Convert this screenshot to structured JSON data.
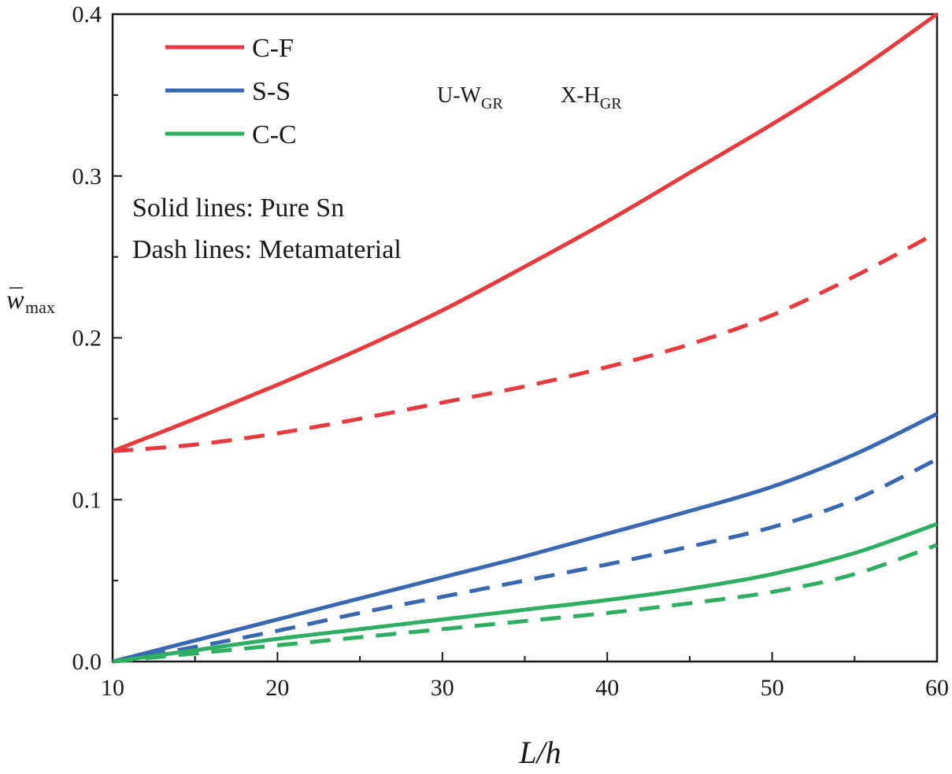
{
  "chart_data": {
    "type": "line",
    "x": [
      10,
      15,
      20,
      25,
      30,
      35,
      40,
      45,
      50,
      55,
      60
    ],
    "xlabel": "L/h",
    "ylabel_main": "w",
    "ylabel_sub": "max",
    "xlim": [
      10,
      60
    ],
    "ylim": [
      0.0,
      0.4
    ],
    "xticks": [
      10,
      20,
      30,
      40,
      50,
      60
    ],
    "xtick_labels": [
      "10",
      "20",
      "30",
      "40",
      "50",
      "60"
    ],
    "yticks": [
      0.0,
      0.1,
      0.2,
      0.3,
      0.4
    ],
    "ytick_labels": [
      "0.0",
      "0.1",
      "0.2",
      "0.3",
      "0.4"
    ],
    "grid": false,
    "legend_position": "top-left",
    "legend": [
      {
        "label": "C-F",
        "color": "#e8393f"
      },
      {
        "label": "S-S",
        "color": "#3a67b1"
      },
      {
        "label": "C-C",
        "color": "#2fae63"
      }
    ],
    "notes": [
      "Solid lines: Pure Sn",
      "Dash lines: Metamaterial"
    ],
    "annotations": [
      {
        "main": "U-W",
        "sub": "GR"
      },
      {
        "main": "X-H",
        "sub": "GR"
      }
    ],
    "series": [
      {
        "name": "C-F Pure Sn",
        "style": "solid",
        "color": "#e8393f",
        "values": [
          0.13,
          0.15,
          0.171,
          0.193,
          0.217,
          0.244,
          0.272,
          0.302,
          0.332,
          0.364,
          0.4
        ]
      },
      {
        "name": "C-F Metamaterial",
        "style": "dash",
        "color": "#e8393f",
        "values": [
          0.13,
          0.134,
          0.141,
          0.15,
          0.16,
          0.17,
          0.182,
          0.196,
          0.214,
          0.238,
          0.265
        ]
      },
      {
        "name": "S-S Pure Sn",
        "style": "solid",
        "color": "#3a67b1",
        "values": [
          0.0,
          0.013,
          0.026,
          0.039,
          0.052,
          0.065,
          0.079,
          0.093,
          0.108,
          0.128,
          0.153
        ]
      },
      {
        "name": "S-S Metamaterial",
        "style": "dash",
        "color": "#3a67b1",
        "values": [
          0.0,
          0.009,
          0.019,
          0.03,
          0.04,
          0.05,
          0.06,
          0.071,
          0.083,
          0.1,
          0.125
        ]
      },
      {
        "name": "C-C Pure Sn",
        "style": "solid",
        "color": "#2fae63",
        "values": [
          0.0,
          0.007,
          0.014,
          0.02,
          0.026,
          0.032,
          0.038,
          0.045,
          0.054,
          0.067,
          0.085
        ]
      },
      {
        "name": "C-C Metamaterial",
        "style": "dash",
        "color": "#2fae63",
        "values": [
          0.0,
          0.005,
          0.01,
          0.015,
          0.02,
          0.025,
          0.03,
          0.036,
          0.043,
          0.054,
          0.072
        ]
      }
    ]
  }
}
